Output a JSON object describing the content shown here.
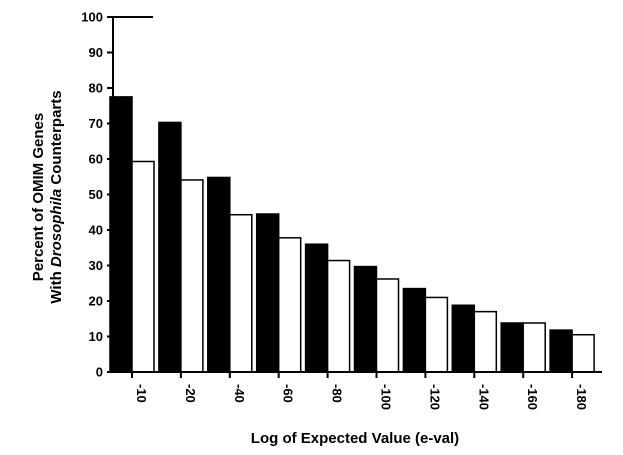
{
  "chart_data": {
    "type": "bar",
    "categories": [
      "-10",
      "-20",
      "-40",
      "-60",
      "-80",
      "-100",
      "-120",
      "-140",
      "-160",
      "-180"
    ],
    "series": [
      {
        "values": [
          77.5,
          70.3,
          54.8,
          44.5,
          36,
          29.7,
          23.5,
          18.8,
          13.8,
          11.8
        ],
        "color": "#000000"
      },
      {
        "values": [
          59.3,
          54.1,
          44.3,
          37.8,
          31.4,
          26.2,
          21,
          17,
          13.8,
          10.5
        ],
        "color": "#ffffff"
      }
    ],
    "ylim": [
      0,
      100
    ],
    "yticks": [
      0,
      10,
      20,
      30,
      40,
      50,
      60,
      70,
      80,
      90,
      100
    ],
    "ylabel": {
      "line1": "Percent of OMIM Genes",
      "line2_prefix": "With ",
      "line2_italic": "Drosophila",
      "line2_suffix": " Counterparts"
    },
    "xlabel": "Log of Expected Value (e-val)",
    "grid": false,
    "legend": "none"
  }
}
